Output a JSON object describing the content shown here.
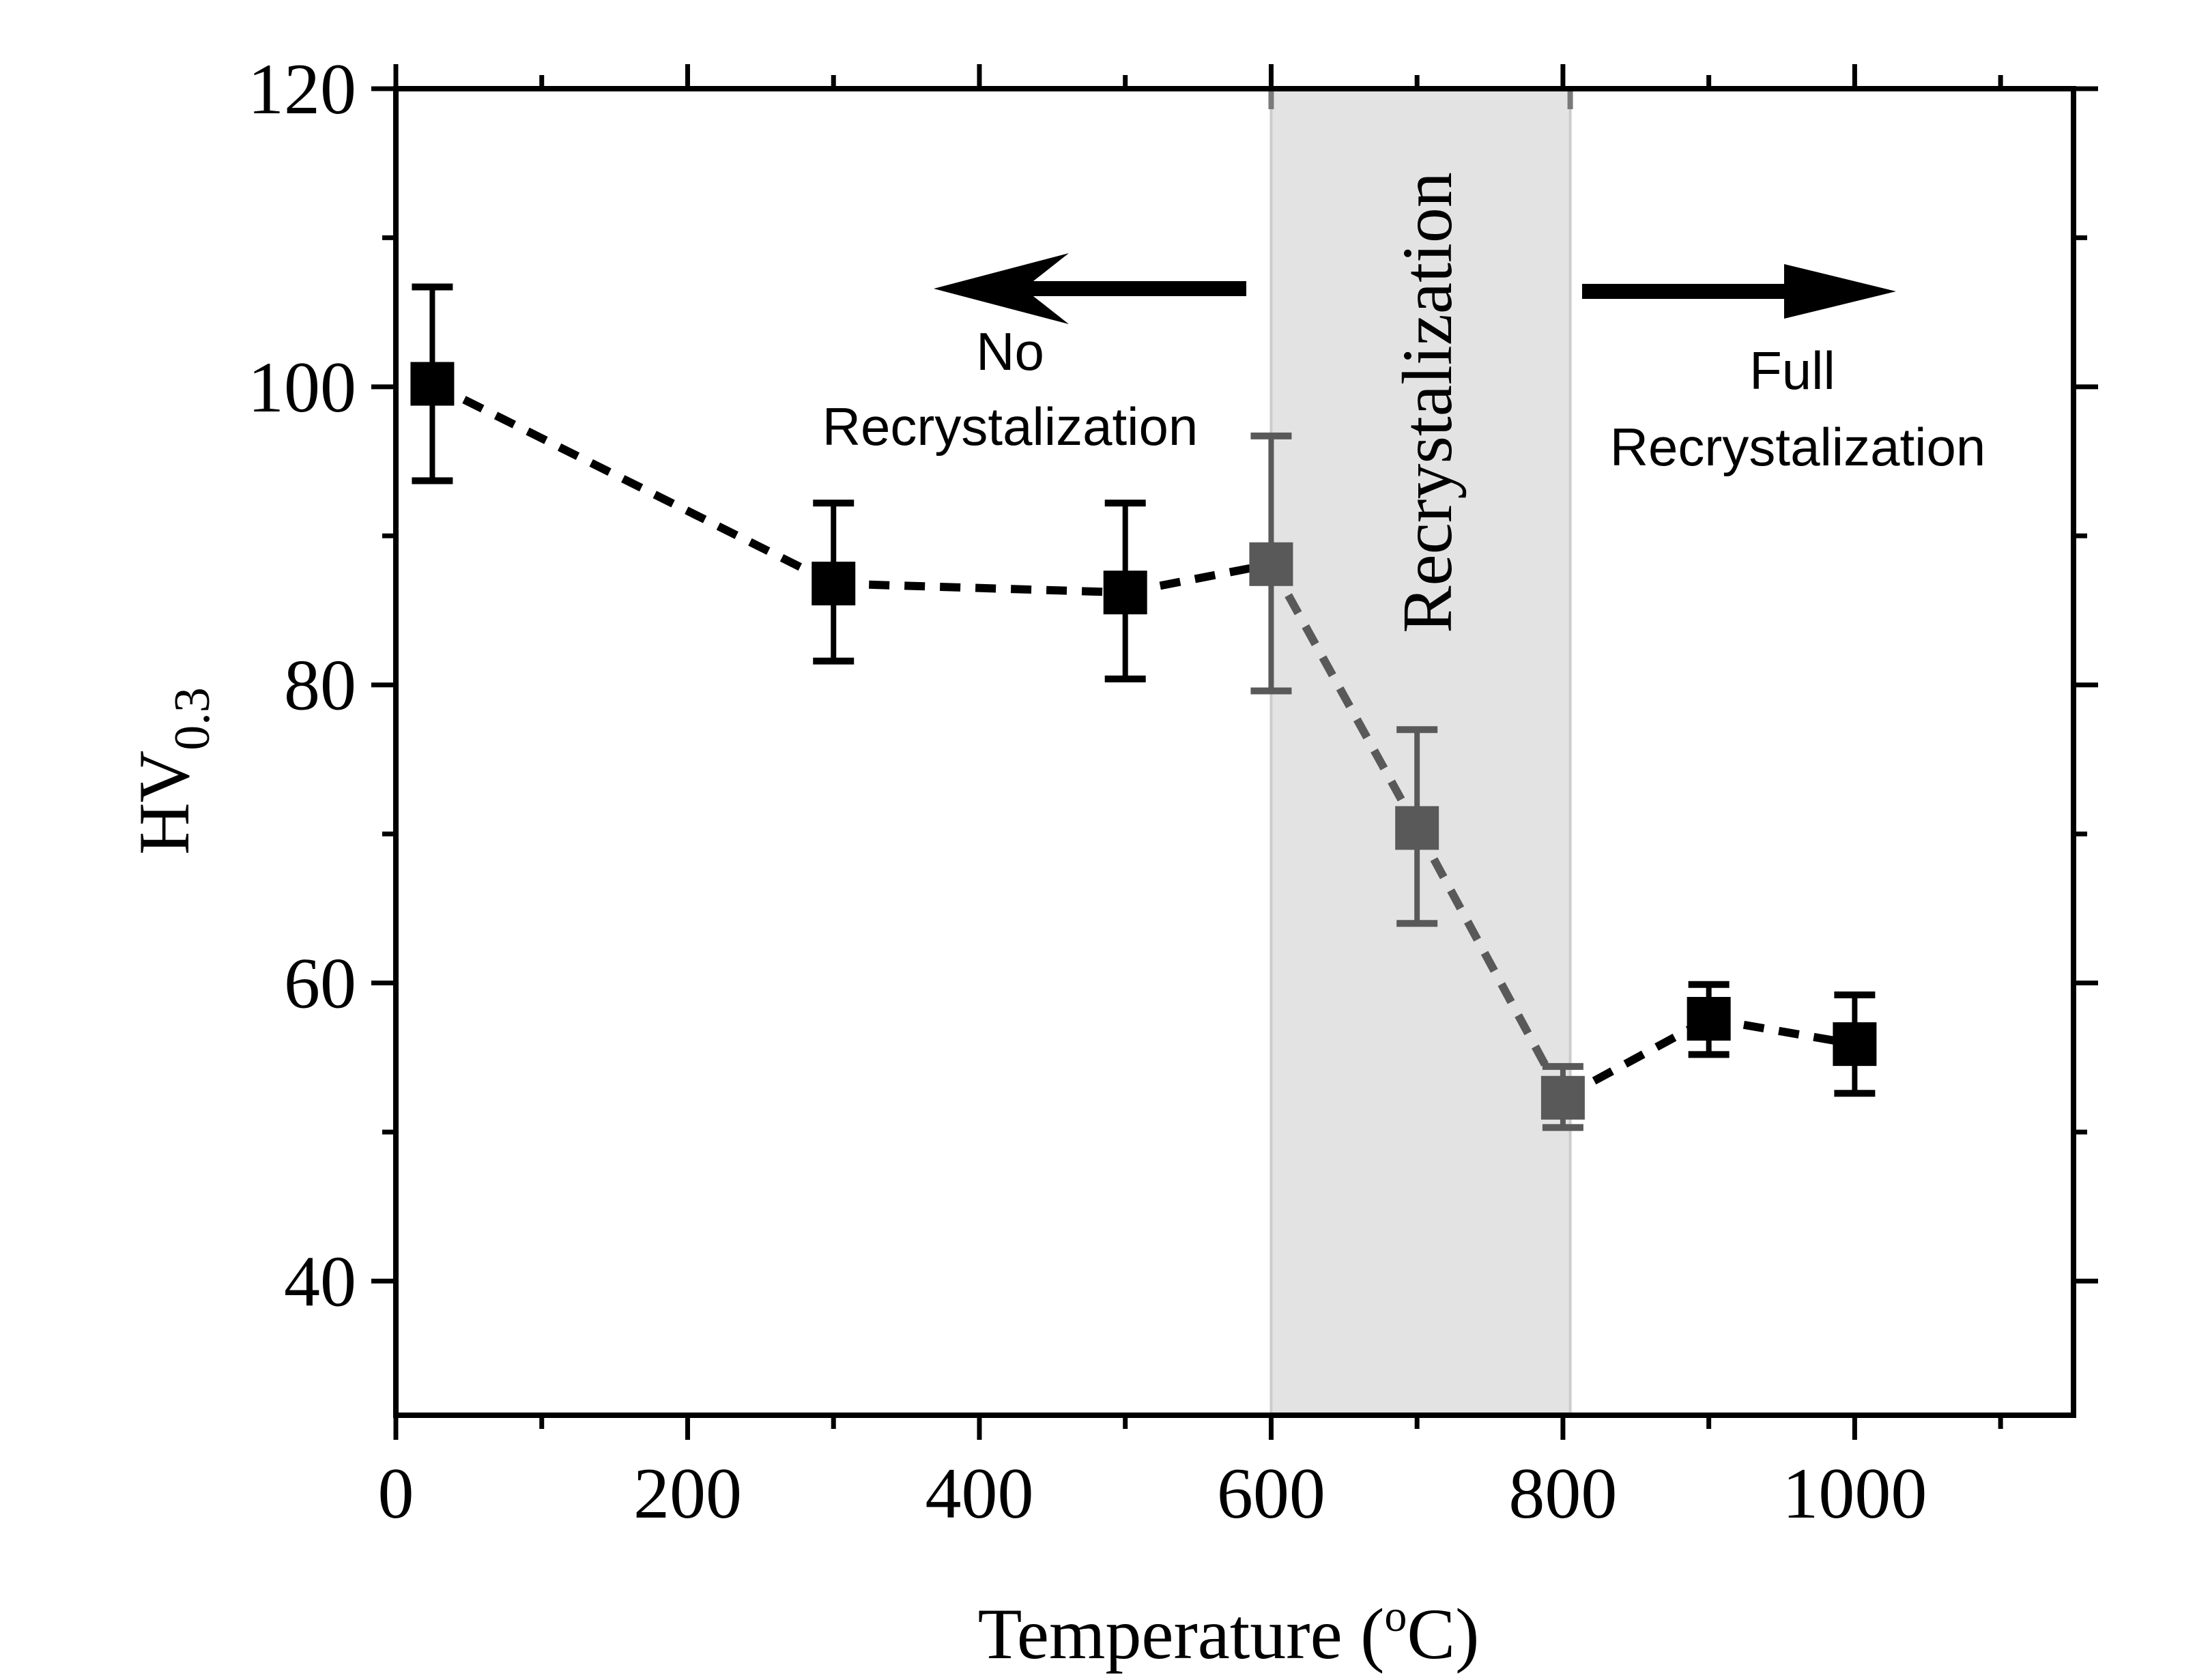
{
  "chart_data": {
    "type": "scatter",
    "title": "",
    "xlabel_prefix": "Temperature (",
    "xlabel_sup": "o",
    "xlabel_suffix": "C)",
    "ylabel_main": "HV",
    "ylabel_sub": "0.3",
    "xlim": [
      0,
      1150
    ],
    "ylim": [
      31,
      120
    ],
    "x_ticks": [
      0,
      200,
      400,
      600,
      800,
      1000
    ],
    "x_tick_labels": [
      "0",
      "200",
      "400",
      "600",
      "800",
      "1000"
    ],
    "y_ticks": [
      40,
      60,
      80,
      100,
      120
    ],
    "y_tick_labels": [
      "40",
      "60",
      "80",
      "100",
      "120"
    ],
    "grid": false,
    "series": [
      {
        "name": "HV0.3",
        "x": [
          25,
          300,
          500,
          600,
          700,
          800,
          900,
          1000
        ],
        "y": [
          100.2,
          86.8,
          86.2,
          88.1,
          70.4,
          52.3,
          57.6,
          55.9
        ],
        "err_low": [
          93.7,
          81.6,
          80.4,
          79.6,
          64.0,
          50.3,
          55.2,
          52.6
        ],
        "err_high": [
          106.7,
          92.2,
          92.2,
          96.7,
          77.0,
          54.4,
          59.9,
          59.2
        ],
        "regions": [
          "outside",
          "outside",
          "outside",
          "inside",
          "inside",
          "inside",
          "outside",
          "outside"
        ]
      }
    ],
    "shaded_region": {
      "x_range": [
        600,
        805
      ],
      "label": "Recrystalization"
    },
    "annotations": [
      {
        "id": "left",
        "lines": [
          "No",
          "Recrystalization"
        ],
        "arrow": "left"
      },
      {
        "id": "right",
        "lines": [
          "Full",
          "Recrystalization"
        ],
        "arrow": "right"
      }
    ],
    "colors": {
      "outside": "#000000",
      "inside": "#595959",
      "band_fill": "#e3e3e3",
      "band_stroke": "#cccccc",
      "band_tick": "#7a7a7a"
    }
  }
}
